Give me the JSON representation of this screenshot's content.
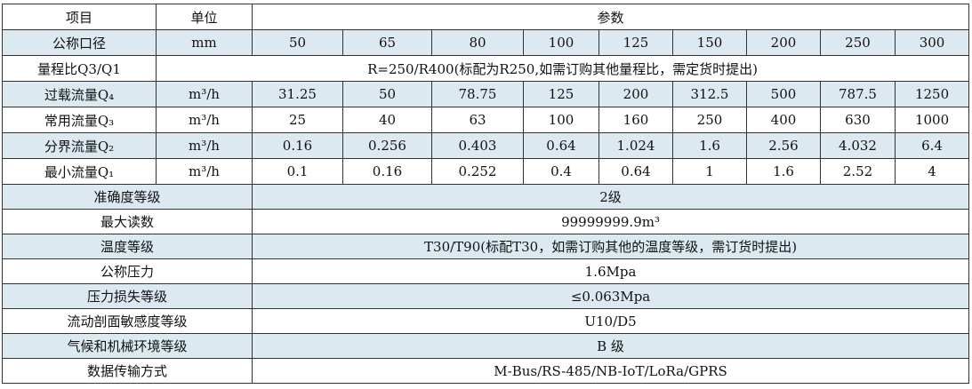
{
  "table": {
    "header": [
      "项目",
      "单位",
      "参数"
    ],
    "rows": [
      [
        "公称口径",
        "mm",
        "50",
        "65",
        "80",
        "100",
        "125",
        "150",
        "200",
        "250",
        "300"
      ],
      [
        "量程比Q3/Q1",
        "R=250/R400(标配为R250,如需订购其他量程比，需定货时提出)"
      ],
      [
        "过载流量Q₄",
        "m³/h",
        "31.25",
        "50",
        "78.75",
        "125",
        "200",
        "312.5",
        "500",
        "787.5",
        "1250"
      ],
      [
        "常用流量Q₃",
        "m³/h",
        "25",
        "40",
        "63",
        "100",
        "160",
        "250",
        "400",
        "630",
        "1000"
      ],
      [
        "分界流量Q₂",
        "m³/h",
        "0.16",
        "0.256",
        "0.403",
        "0.64",
        "1.024",
        "1.6",
        "2.56",
        "4.032",
        "6.4"
      ],
      [
        "最小流量Q₁",
        "m³/h",
        "0.1",
        "0.16",
        "0.252",
        "0.4",
        "0.64",
        "1",
        "1.6",
        "2.52",
        "4"
      ]
    ],
    "spec_rows": [
      [
        "准确度等级",
        "2级"
      ],
      [
        "最大读数",
        "99999999.9m³"
      ],
      [
        "温度等级",
        "T30/T90(标配T30，如需订购其他的温度等级，需订货时提出)"
      ],
      [
        "公称压力",
        "1.6Mpa"
      ],
      [
        "压力损失等级",
        "≤0.063Mpa"
      ],
      [
        "流动剖面敏感度等级",
        "U10/D5"
      ],
      [
        "气候和机械环境等级",
        "B 级"
      ],
      [
        "数据传输方式",
        "M-Bus/RS-485/NB-IoT/LoRa/GPRS"
      ]
    ]
  }
}
